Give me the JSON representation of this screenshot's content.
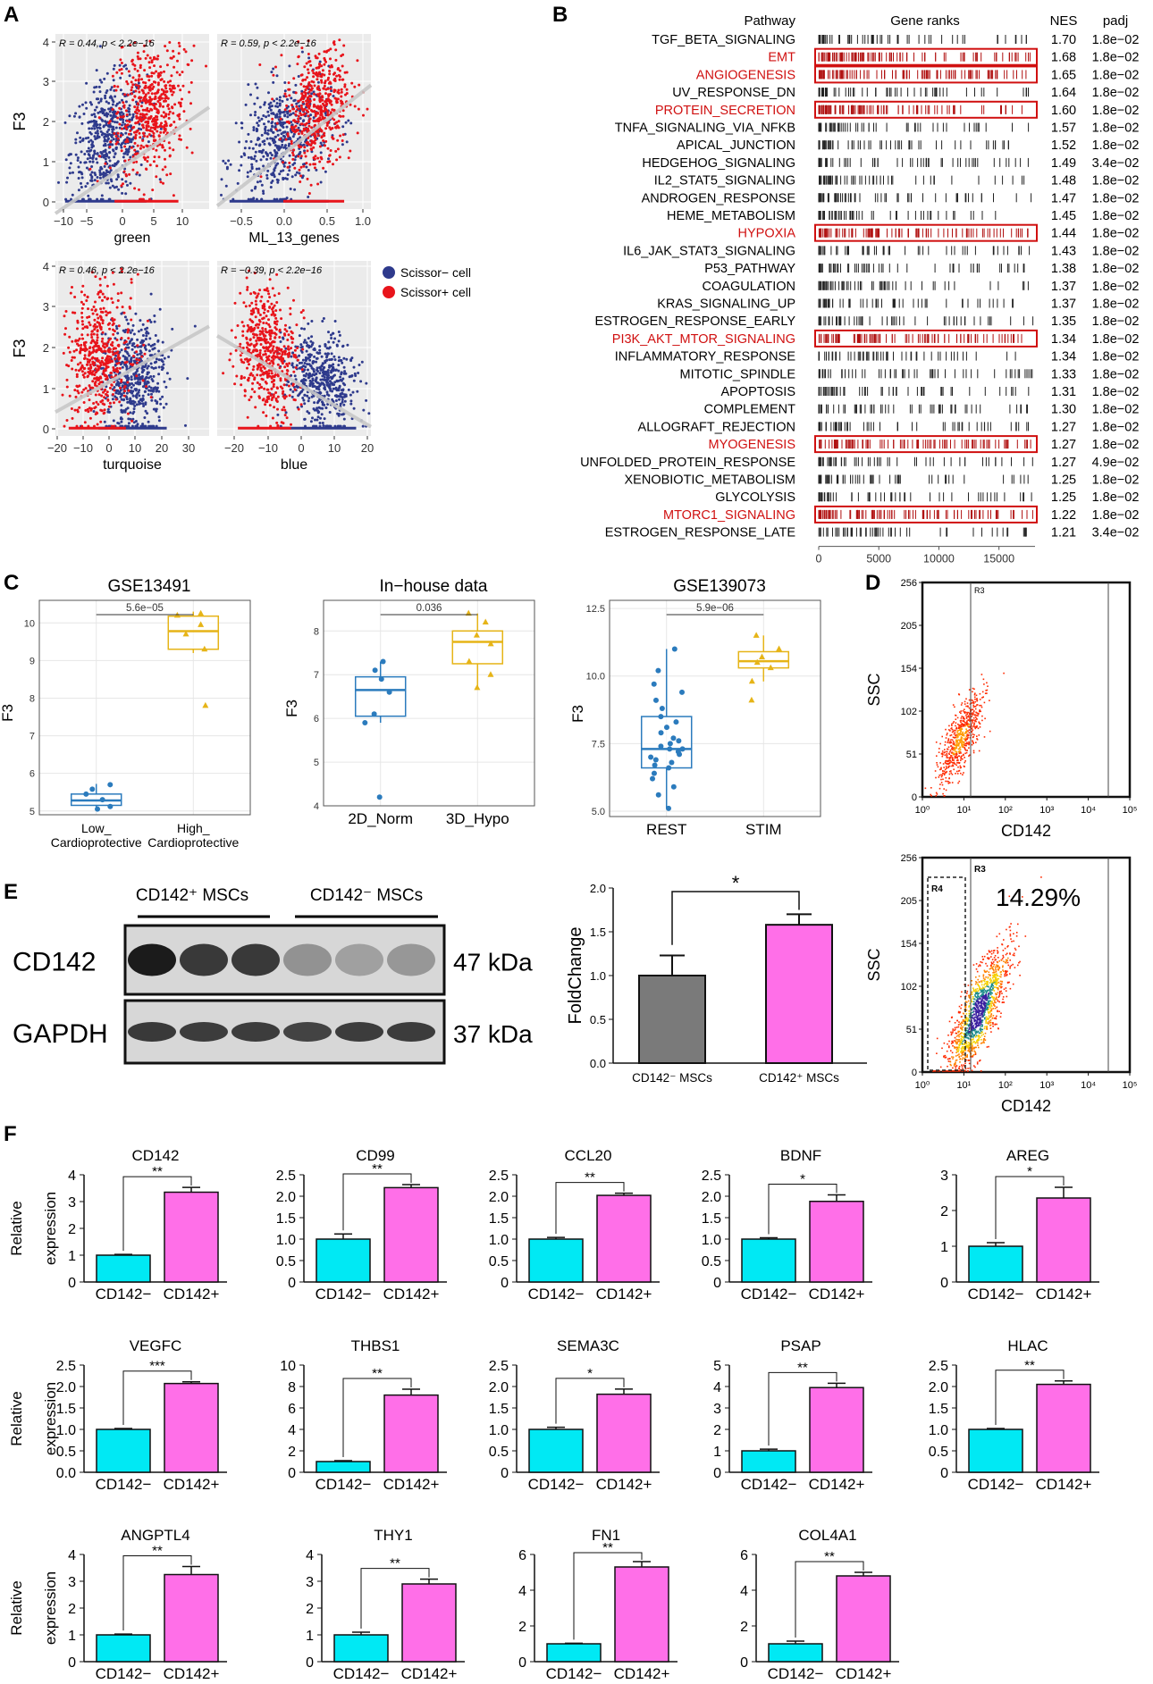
{
  "panels": {
    "A": "A",
    "B": "B",
    "C": "C",
    "D": "D",
    "E": "E",
    "F": "F"
  },
  "colors": {
    "scissor_neg": "#2e3a8c",
    "scissor_pos": "#e8141b",
    "fit_line": "#c8c8c8",
    "highlight": "#d01010",
    "box_blue": "#2b7bbd",
    "box_gold": "#e6b417",
    "bar_gray": "#7a7a7a",
    "bar_pink": "#ff6fe8",
    "bar_cyan": "#00e9f4"
  },
  "chart_data": [
    {
      "id": "A",
      "type": "scatter",
      "ylabel": "F3",
      "legend": [
        "Scissor− cell",
        "Scissor+ cell"
      ],
      "subplots": [
        {
          "xlabel": "green",
          "stat": "R = 0.44, p < 2.2e−16",
          "xlim": [
            -13,
            13
          ],
          "ylim": [
            -0.2,
            4.3
          ],
          "xticks": [
            "−10",
            "−5",
            "0",
            "5",
            "10"
          ],
          "yticks": [
            "0",
            "1",
            "2",
            "3",
            "4"
          ],
          "slope": 0.105,
          "intercept": 1.05
        },
        {
          "xlabel": "ML_13_genes",
          "stat": "R = 0.59, p < 2.2e−16",
          "xlim": [
            -0.85,
            1.15
          ],
          "yticks": [
            "0",
            "1",
            "2",
            "3",
            "4"
          ],
          "xticks": [
            "−0.5",
            "0.0",
            "0.5",
            "1.0"
          ],
          "ylim": [
            -0.2,
            4.3
          ],
          "slope": 1.55,
          "intercept": 1.2
        },
        {
          "xlabel": "turquoise",
          "stat": "R = 0.46, p < 2.2e−16",
          "xlim": [
            -22,
            36
          ],
          "ylim": [
            -0.2,
            4.3
          ],
          "xticks": [
            "−20",
            "−10",
            "0",
            "10",
            "20",
            "30"
          ],
          "yticks": [
            "0",
            "1",
            "2",
            "3",
            "4"
          ],
          "slope": 0.038,
          "intercept": 1.25
        },
        {
          "xlabel": "blue",
          "stat": "R = −0.39, p < 2.2e−16",
          "xlim": [
            -25,
            27
          ],
          "ylim": [
            -0.2,
            4.3
          ],
          "xticks": [
            "−20",
            "−10",
            "0",
            "10",
            "20"
          ],
          "yticks": [
            "0",
            "1",
            "2",
            "3",
            "4"
          ],
          "slope": -0.045,
          "intercept": 1.25
        }
      ]
    },
    {
      "id": "B",
      "type": "table",
      "headers": {
        "pathway": "Pathway",
        "ranks": "Gene ranks",
        "nes": "NES",
        "padj": "padj"
      },
      "xticks": [
        "0",
        "5000",
        "10000",
        "15000"
      ],
      "rows": [
        {
          "name": "TGF_BETA_SIGNALING",
          "nes": "1.70",
          "padj": "1.8e−02",
          "hl": false
        },
        {
          "name": "EMT",
          "nes": "1.68",
          "padj": "1.8e−02",
          "hl": true
        },
        {
          "name": "ANGIOGENESIS",
          "nes": "1.65",
          "padj": "1.8e−02",
          "hl": true
        },
        {
          "name": "UV_RESPONSE_DN",
          "nes": "1.64",
          "padj": "1.8e−02",
          "hl": false
        },
        {
          "name": "PROTEIN_SECRETION",
          "nes": "1.60",
          "padj": "1.8e−02",
          "hl": true
        },
        {
          "name": "TNFA_SIGNALING_VIA_NFKB",
          "nes": "1.57",
          "padj": "1.8e−02",
          "hl": false
        },
        {
          "name": "APICAL_JUNCTION",
          "nes": "1.52",
          "padj": "1.8e−02",
          "hl": false
        },
        {
          "name": "HEDGEHOG_SIGNALING",
          "nes": "1.49",
          "padj": "3.4e−02",
          "hl": false
        },
        {
          "name": "IL2_STAT5_SIGNALING",
          "nes": "1.48",
          "padj": "1.8e−02",
          "hl": false
        },
        {
          "name": "ANDROGEN_RESPONSE",
          "nes": "1.47",
          "padj": "1.8e−02",
          "hl": false
        },
        {
          "name": "HEME_METABOLISM",
          "nes": "1.45",
          "padj": "1.8e−02",
          "hl": false
        },
        {
          "name": "HYPOXIA",
          "nes": "1.44",
          "padj": "1.8e−02",
          "hl": true
        },
        {
          "name": "IL6_JAK_STAT3_SIGNALING",
          "nes": "1.43",
          "padj": "1.8e−02",
          "hl": false
        },
        {
          "name": "P53_PATHWAY",
          "nes": "1.38",
          "padj": "1.8e−02",
          "hl": false
        },
        {
          "name": "COAGULATION",
          "nes": "1.37",
          "padj": "1.8e−02",
          "hl": false
        },
        {
          "name": "KRAS_SIGNALING_UP",
          "nes": "1.37",
          "padj": "1.8e−02",
          "hl": false
        },
        {
          "name": "ESTROGEN_RESPONSE_EARLY",
          "nes": "1.35",
          "padj": "1.8e−02",
          "hl": false
        },
        {
          "name": "PI3K_AKT_MTOR_SIGNALING",
          "nes": "1.34",
          "padj": "1.8e−02",
          "hl": true
        },
        {
          "name": "INFLAMMATORY_RESPONSE",
          "nes": "1.34",
          "padj": "1.8e−02",
          "hl": false
        },
        {
          "name": "MITOTIC_SPINDLE",
          "nes": "1.33",
          "padj": "1.8e−02",
          "hl": false
        },
        {
          "name": "APOPTOSIS",
          "nes": "1.31",
          "padj": "1.8e−02",
          "hl": false
        },
        {
          "name": "COMPLEMENT",
          "nes": "1.30",
          "padj": "1.8e−02",
          "hl": false
        },
        {
          "name": "ALLOGRAFT_REJECTION",
          "nes": "1.27",
          "padj": "1.8e−02",
          "hl": false
        },
        {
          "name": "MYOGENESIS",
          "nes": "1.27",
          "padj": "1.8e−02",
          "hl": true
        },
        {
          "name": "UNFOLDED_PROTEIN_RESPONSE",
          "nes": "1.27",
          "padj": "4.9e−02",
          "hl": false
        },
        {
          "name": "XENOBIOTIC_METABOLISM",
          "nes": "1.25",
          "padj": "1.8e−02",
          "hl": false
        },
        {
          "name": "GLYCOLYSIS",
          "nes": "1.25",
          "padj": "1.8e−02",
          "hl": false
        },
        {
          "name": "MTORC1_SIGNALING",
          "nes": "1.22",
          "padj": "1.8e−02",
          "hl": true
        },
        {
          "name": "ESTROGEN_RESPONSE_LATE",
          "nes": "1.21",
          "padj": "3.4e−02",
          "hl": false
        }
      ]
    },
    {
      "id": "C",
      "type": "box",
      "ylabel": "F3",
      "subplots": [
        {
          "title": "GSE13491",
          "pval": "5.6e−05",
          "ylim": [
            4.9,
            10.6
          ],
          "yticks": [
            5,
            6,
            7,
            8,
            9,
            10
          ],
          "groups": [
            {
              "label": [
                "Low_",
                "Cardioprotective"
              ],
              "q1": 5.15,
              "med": 5.28,
              "q3": 5.45,
              "lo": 5.02,
              "hi": 5.72,
              "pts": [
                5.05,
                5.12,
                5.3,
                5.45,
                5.58,
                5.7
              ]
            },
            {
              "label": [
                "High_",
                "Cardioprotective"
              ],
              "q1": 9.3,
              "med": 9.78,
              "q3": 10.18,
              "lo": 9.2,
              "hi": 10.3,
              "pts": [
                7.8,
                9.3,
                9.7,
                9.95,
                10.2,
                10.25
              ]
            }
          ]
        },
        {
          "title": "In−house data",
          "pval": "0.036",
          "ylim": [
            4,
            8.7
          ],
          "yticks": [
            4,
            5,
            6,
            7,
            8
          ],
          "groups": [
            {
              "label": [
                "2D_Norm"
              ],
              "q1": 6.05,
              "med": 6.65,
              "q3": 6.95,
              "lo": 5.9,
              "hi": 7.3,
              "pts": [
                4.2,
                5.9,
                6.1,
                6.6,
                6.9,
                7.1,
                7.3
              ]
            },
            {
              "label": [
                "3D_Hypo"
              ],
              "q1": 7.25,
              "med": 7.75,
              "q3": 8.0,
              "lo": 6.7,
              "hi": 8.4,
              "pts": [
                6.7,
                7.0,
                7.3,
                7.7,
                7.9,
                8.2,
                8.4
              ]
            }
          ]
        },
        {
          "title": "GSE139073",
          "pval": "5.9e−06",
          "ylim": [
            4.8,
            12.8
          ],
          "yticks": [
            5.0,
            7.5,
            10.0,
            12.5
          ],
          "groups": [
            {
              "label": [
                "REST"
              ],
              "q1": 6.6,
              "med": 7.3,
              "q3": 8.5,
              "lo": 5.1,
              "hi": 11.0,
              "pts": [
                5.1,
                5.6,
                5.9,
                6.2,
                6.4,
                6.6,
                6.7,
                6.8,
                6.9,
                7.0,
                7.1,
                7.2,
                7.3,
                7.3,
                7.4,
                7.5,
                7.6,
                7.7,
                7.9,
                8.1,
                8.3,
                8.5,
                8.8,
                9.1,
                9.4,
                9.7,
                10.2,
                11.0
              ]
            },
            {
              "label": [
                "STIM"
              ],
              "q1": 10.3,
              "med": 10.55,
              "q3": 10.9,
              "lo": 9.8,
              "hi": 11.5,
              "pts": [
                9.1,
                9.8,
                10.3,
                10.5,
                10.7,
                11.0,
                11.5
              ]
            }
          ]
        }
      ]
    },
    {
      "id": "D",
      "type": "scatter",
      "xlabel": "CD142",
      "ylabel": "SSC",
      "yticks": [
        "256",
        "205",
        "154",
        "102",
        "51",
        "0"
      ],
      "xticks": [
        "10⁰",
        "10¹",
        "10²",
        "10³",
        "10⁴",
        "10⁵"
      ],
      "subplots": [
        {
          "gates": [
            "R3"
          ],
          "percent": ""
        },
        {
          "gates": [
            "R4",
            "R3"
          ],
          "percent": "14.29%"
        }
      ]
    },
    {
      "id": "E",
      "type": "bar",
      "blot_groups": [
        "CD142⁺ MSCs",
        "CD142⁻ MSCs"
      ],
      "proteins": [
        {
          "name": "CD142",
          "kda": "47 kDa"
        },
        {
          "name": "GAPDH",
          "kda": "37 kDa"
        }
      ],
      "categories": [
        "CD142⁻ MSCs",
        "CD142⁺ MSCs"
      ],
      "values": [
        1.0,
        1.58
      ],
      "errors": [
        0.23,
        0.12
      ],
      "ylabel": "FoldChange",
      "yticks": [
        "0.0",
        "0.5",
        "1.0",
        "1.5",
        "2.0"
      ],
      "ylim": [
        0,
        2.0
      ],
      "sig": "*"
    },
    {
      "id": "F",
      "type": "bar",
      "ylabel": [
        "Relative",
        "expression"
      ],
      "categories": [
        "CD142−",
        "CD142+"
      ],
      "genes": [
        {
          "name": "CD142",
          "values": [
            1.0,
            3.35
          ],
          "err": [
            0.03,
            0.18
          ],
          "ymax": 4,
          "ticks": [
            "0",
            "1",
            "2",
            "3",
            "4"
          ],
          "sig": "**"
        },
        {
          "name": "CD99",
          "values": [
            1.0,
            2.2
          ],
          "err": [
            0.12,
            0.07
          ],
          "ymax": 2.5,
          "ticks": [
            "0",
            "0.5",
            "1.0",
            "1.5",
            "2.0",
            "2.5"
          ],
          "sig": "**"
        },
        {
          "name": "CCL20",
          "values": [
            1.0,
            2.02
          ],
          "err": [
            0.04,
            0.05
          ],
          "ymax": 2.5,
          "ticks": [
            "0",
            "0.5",
            "1.0",
            "1.5",
            "2.0",
            "2.5"
          ],
          "sig": "**"
        },
        {
          "name": "BDNF",
          "values": [
            1.0,
            1.88
          ],
          "err": [
            0.03,
            0.15
          ],
          "ymax": 2.5,
          "ticks": [
            "0",
            "0.5",
            "1.0",
            "1.5",
            "2.0",
            "2.5"
          ],
          "sig": "*"
        },
        {
          "name": "AREG",
          "values": [
            1.0,
            2.35
          ],
          "err": [
            0.1,
            0.3
          ],
          "ymax": 3,
          "ticks": [
            "0",
            "1",
            "2",
            "3"
          ],
          "sig": "*"
        },
        {
          "name": "VEGFC",
          "values": [
            1.0,
            2.07
          ],
          "err": [
            0.02,
            0.04
          ],
          "ymax": 2.5,
          "ticks": [
            "0.0",
            "0.5",
            "1.0",
            "1.5",
            "2.0",
            "2.5"
          ],
          "sig": "***"
        },
        {
          "name": "THBS1",
          "values": [
            1.0,
            7.2
          ],
          "err": [
            0.08,
            0.55
          ],
          "ymax": 10,
          "ticks": [
            "0",
            "2",
            "4",
            "6",
            "8",
            "10"
          ],
          "sig": "**"
        },
        {
          "name": "SEMA3C",
          "values": [
            1.0,
            1.82
          ],
          "err": [
            0.05,
            0.12
          ],
          "ymax": 2.5,
          "ticks": [
            "0",
            "0.5",
            "1.0",
            "1.5",
            "2.0",
            "2.5"
          ],
          "sig": "*"
        },
        {
          "name": "PSAP",
          "values": [
            1.0,
            3.95
          ],
          "err": [
            0.08,
            0.2
          ],
          "ymax": 5,
          "ticks": [
            "0",
            "1",
            "2",
            "3",
            "4",
            "5"
          ],
          "sig": "**"
        },
        {
          "name": "HLAC",
          "values": [
            1.0,
            2.05
          ],
          "err": [
            0.02,
            0.08
          ],
          "ymax": 2.5,
          "ticks": [
            "0",
            "0.5",
            "1.0",
            "1.5",
            "2.0",
            "2.5"
          ],
          "sig": "**"
        },
        {
          "name": "ANGPTL4",
          "values": [
            1.0,
            3.25
          ],
          "err": [
            0.03,
            0.3
          ],
          "ymax": 4,
          "ticks": [
            "0",
            "1",
            "2",
            "3",
            "4"
          ],
          "sig": "**"
        },
        {
          "name": "THY1",
          "values": [
            1.0,
            2.9
          ],
          "err": [
            0.1,
            0.18
          ],
          "ymax": 4,
          "ticks": [
            "0",
            "1",
            "2",
            "3",
            "4"
          ],
          "sig": "**"
        },
        {
          "name": "FN1",
          "values": [
            1.0,
            5.3
          ],
          "err": [
            0.03,
            0.3
          ],
          "ymax": 6,
          "ticks": [
            "0",
            "2",
            "4",
            "6"
          ],
          "sig": "**"
        },
        {
          "name": "COL4A1",
          "values": [
            1.0,
            4.8
          ],
          "err": [
            0.15,
            0.2
          ],
          "ymax": 6,
          "ticks": [
            "0",
            "2",
            "4",
            "6"
          ],
          "sig": "**"
        }
      ]
    }
  ]
}
